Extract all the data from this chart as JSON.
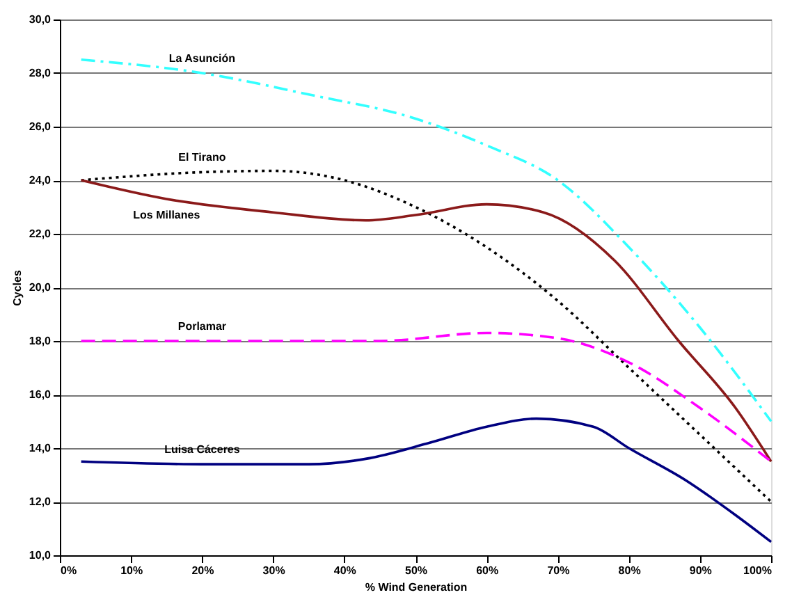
{
  "chart_data": {
    "type": "line",
    "xlabel": "% Wind Generation",
    "ylabel": "Cycles",
    "xlim": [
      0,
      100
    ],
    "ylim": [
      10,
      30
    ],
    "xticks": [
      {
        "value": 0,
        "label": "0%"
      },
      {
        "value": 10,
        "label": "10%"
      },
      {
        "value": 20,
        "label": "20%"
      },
      {
        "value": 30,
        "label": "30%"
      },
      {
        "value": 40,
        "label": "40%"
      },
      {
        "value": 50,
        "label": "50%"
      },
      {
        "value": 60,
        "label": "60%"
      },
      {
        "value": 70,
        "label": "70%"
      },
      {
        "value": 80,
        "label": "80%"
      },
      {
        "value": 90,
        "label": "90%"
      },
      {
        "value": 100,
        "label": "100%"
      }
    ],
    "yticks": [
      {
        "value": 10,
        "label": "10,0"
      },
      {
        "value": 12,
        "label": "12,0"
      },
      {
        "value": 14,
        "label": "14,0"
      },
      {
        "value": 16,
        "label": "16,0"
      },
      {
        "value": 18,
        "label": "18,0"
      },
      {
        "value": 20,
        "label": "20,0"
      },
      {
        "value": 22,
        "label": "22,0"
      },
      {
        "value": 24,
        "label": "24,0"
      },
      {
        "value": 26,
        "label": "26,0"
      },
      {
        "value": 28,
        "label": "28,0"
      },
      {
        "value": 30,
        "label": "30,0"
      }
    ],
    "grid": "y",
    "marker": "none",
    "series": [
      {
        "name": "La Asunción",
        "color": "#33ffff",
        "line_style": "dashdot",
        "x": [
          3,
          20,
          35,
          50,
          60,
          70,
          80,
          90,
          100
        ],
        "values": [
          28.5,
          28.0,
          27.2,
          26.3,
          25.3,
          24.0,
          21.5,
          18.5,
          15.0
        ]
      },
      {
        "name": "El Tirano",
        "color": "#000000",
        "line_style": "dotted",
        "x": [
          3,
          20,
          30,
          40,
          50,
          60,
          70,
          80,
          90,
          100
        ],
        "values": [
          24.0,
          24.3,
          24.35,
          24.0,
          23.0,
          21.5,
          19.5,
          17.0,
          14.5,
          12.0
        ]
      },
      {
        "name": "Los Millanes",
        "color": "#8b1a1a",
        "line_style": "solid",
        "x": [
          3,
          15,
          30,
          43,
          50,
          60,
          68,
          78,
          87,
          95,
          100
        ],
        "values": [
          24.0,
          23.3,
          22.8,
          22.5,
          22.7,
          23.1,
          22.8,
          21.0,
          18.0,
          15.5,
          13.5
        ]
      },
      {
        "name": "Porlamar",
        "color": "#ff00ff",
        "line_style": "dashed",
        "x": [
          3,
          20,
          45,
          60,
          70,
          80,
          90,
          100
        ],
        "values": [
          18.0,
          18.0,
          18.0,
          18.3,
          18.1,
          17.2,
          15.5,
          13.5
        ]
      },
      {
        "name": "Luisa Cáceres",
        "color": "#000080",
        "line_style": "solid",
        "x": [
          3,
          20,
          35,
          43,
          52,
          60,
          67,
          75,
          80,
          88,
          95,
          100
        ],
        "values": [
          13.5,
          13.4,
          13.4,
          13.6,
          14.2,
          14.8,
          15.1,
          14.8,
          14.0,
          12.8,
          11.5,
          10.5
        ]
      }
    ]
  }
}
